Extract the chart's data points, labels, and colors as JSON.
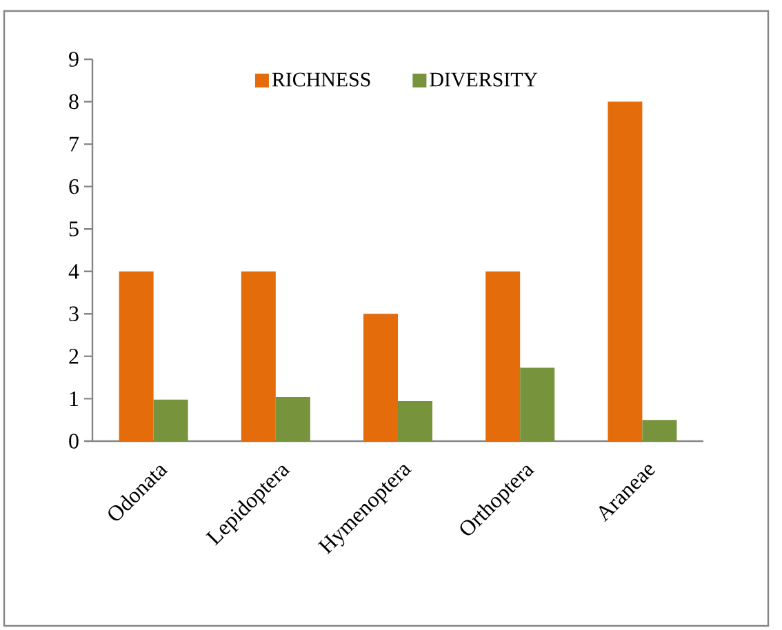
{
  "chart_data": {
    "type": "bar",
    "categories": [
      "Odonata",
      "Lepidoptera",
      "Hymenoptera",
      "Orthoptera",
      "Araneae"
    ],
    "series": [
      {
        "name": "RICHNESS",
        "color": "#e46c0a",
        "values": [
          4,
          4,
          3,
          4,
          8
        ]
      },
      {
        "name": "DIVERSITY",
        "color": "#77933c",
        "values": [
          0.98,
          1.04,
          0.94,
          1.73,
          0.5
        ]
      }
    ],
    "ylim": [
      0,
      9
    ],
    "yticks": [
      0,
      1,
      2,
      3,
      4,
      5,
      6,
      7,
      8,
      9
    ],
    "grid": false,
    "legend": "top"
  }
}
